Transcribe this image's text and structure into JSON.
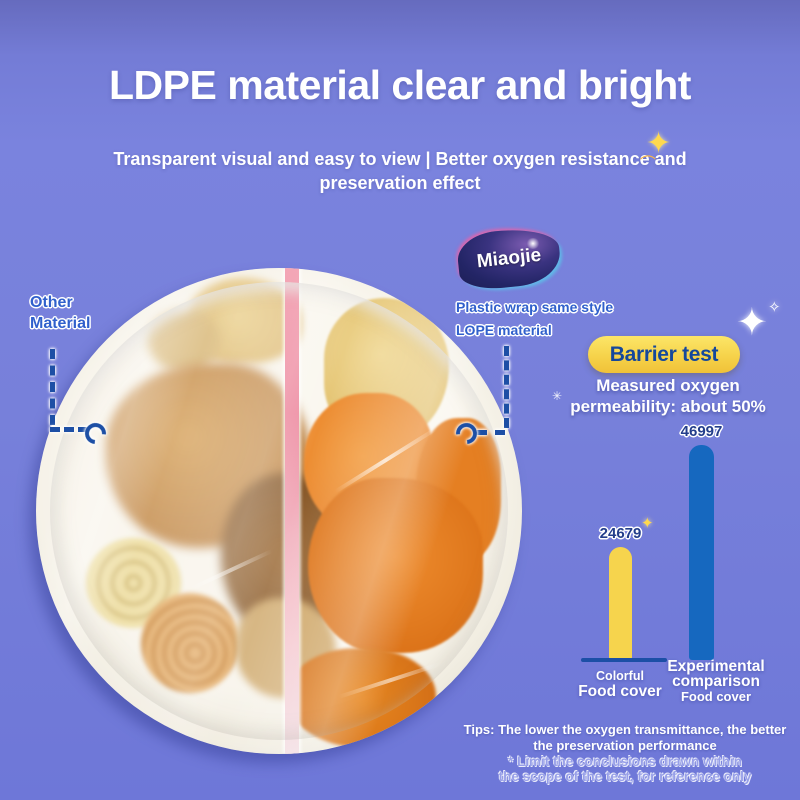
{
  "hero": {
    "title": "LDPE material clear and bright",
    "subtitle_line1": "Transparent visual and easy to view | Better oxygen resistance and",
    "subtitle_line2": "preservation effect"
  },
  "compare": {
    "left_label_line1": "Other",
    "left_label_line2": "Material",
    "right_label_line1": "Plastic wrap same style",
    "right_label_line2": "LOPE material"
  },
  "brand": {
    "name": "Miaojie"
  },
  "barrier": {
    "badge_label": "Barrier test",
    "note_line1": "Measured oxygen",
    "note_line2": "permeability: about 50%"
  },
  "chart_data": {
    "type": "bar",
    "title": "Barrier test",
    "categories": [
      "Colorful Food cover",
      "Experimental comparison Food cover"
    ],
    "values": [
      24679,
      46997
    ],
    "bar_colors": [
      "#f6d44d",
      "#1668bf"
    ],
    "ylim": [
      0,
      50000
    ],
    "grid": false,
    "legend": "none",
    "annotation": "Measured oxygen permeability: about 50%"
  },
  "chart_labels": {
    "bar1_line1": "Colorful",
    "bar1_line2": "Food cover",
    "bar2_line1": "Experimental",
    "bar2_line2": "comparison",
    "bar2_line3": "Food cover"
  },
  "tips": {
    "line1": "Tips: The lower the oxygen transmittance, the better",
    "line2": "the preservation performance",
    "line3": "* Limit the conclusions drawn within",
    "line4": "the scope of the test, for reference only"
  },
  "icons": {
    "sparkle": "✦",
    "sparkle_small": "✧",
    "swoosh": "⌒",
    "flower": "✳"
  },
  "colors": {
    "background": "#7780da",
    "accent_yellow": "#f6d44d",
    "bar_blue": "#1668bf",
    "axis_blue": "#1c4fa6",
    "label_blue": "#3060cc",
    "badge_text_blue": "#15489c",
    "pink_strip": "#ee8fa4"
  }
}
